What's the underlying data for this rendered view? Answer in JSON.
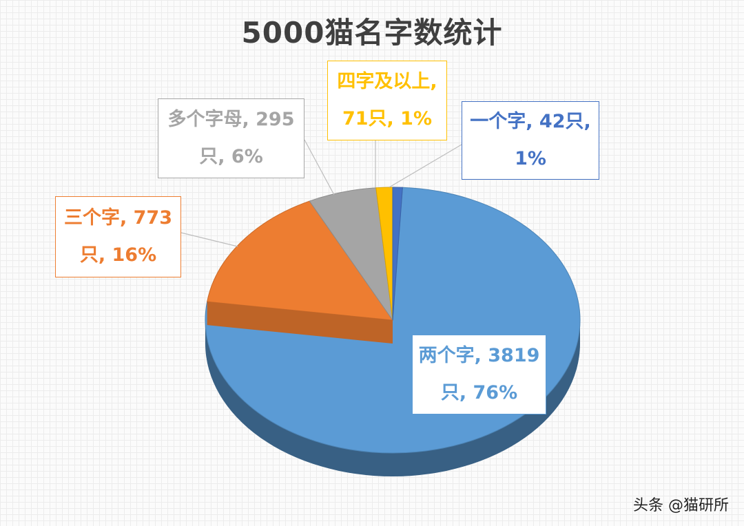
{
  "chart_data": {
    "type": "pie",
    "title": "5000猫名字数统计",
    "slices": [
      {
        "key": "two",
        "label": "两个字, 3819只, 76%",
        "line1": "两个字, 3819",
        "line2": "只, 76%",
        "category": "两个字",
        "value": 3819,
        "percent": 76,
        "color": "#5b9bd5"
      },
      {
        "key": "three",
        "label": "三个字, 773只, 16%",
        "line1": "三个字, 773",
        "line2": "只, 16%",
        "category": "三个字",
        "value": 773,
        "percent": 16,
        "color": "#ed7d31"
      },
      {
        "key": "letters",
        "label": "多个字母, 295只, 6%",
        "line1": "多个字母, 295",
        "line2": "只, 6%",
        "category": "多个字母",
        "value": 295,
        "percent": 6,
        "color": "#a5a5a5"
      },
      {
        "key": "four",
        "label": "四字及以上, 71只, 1%",
        "line1": "四字及以上,",
        "line2": "71只, 1%",
        "category": "四字及以上",
        "value": 71,
        "percent": 1,
        "color": "#ffc000"
      },
      {
        "key": "one",
        "label": "一个字, 42只, 1%",
        "line1": "一个字, 42只,",
        "line2": "1%",
        "category": "一个字",
        "value": 42,
        "percent": 1,
        "color": "#4472c4"
      }
    ],
    "label_text_colors": {
      "two": "#5b9bd5",
      "three": "#ed7d31",
      "letters": "#a5a5a5",
      "four": "#ffc000",
      "one": "#4472c4"
    }
  },
  "watermark": "头条 @猫研所"
}
